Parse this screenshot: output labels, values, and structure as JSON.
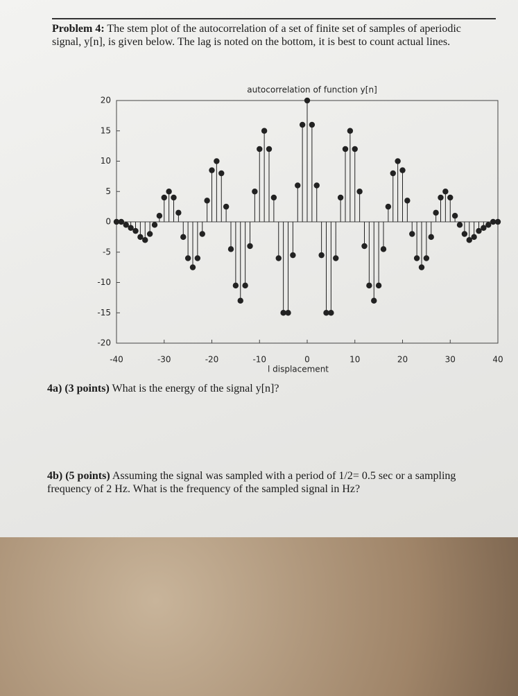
{
  "header": {
    "label": "Problem 4:",
    "text": "The stem plot of the autocorrelation of a set of finite set of samples of aperiodic signal, y[n], is given below.  The lag is noted on the bottom, it is best to count actual lines."
  },
  "chart_data": {
    "type": "stem",
    "title": "autocorrelation of function y[n]",
    "x_label": "l displacement",
    "color": "#222222",
    "x": [
      -40,
      -39,
      -38,
      -37,
      -36,
      -35,
      -34,
      -33,
      -32,
      -31,
      -30,
      -29,
      -28,
      -27,
      -26,
      -25,
      -24,
      -23,
      -22,
      -21,
      -20,
      -19,
      -18,
      -17,
      -16,
      -15,
      -14,
      -13,
      -12,
      -11,
      -10,
      -9,
      -8,
      -7,
      -6,
      -5,
      -4,
      -3,
      -2,
      -1,
      0,
      1,
      2,
      3,
      4,
      5,
      6,
      7,
      8,
      9,
      10,
      11,
      12,
      13,
      14,
      15,
      16,
      17,
      18,
      19,
      20,
      21,
      22,
      23,
      24,
      25,
      26,
      27,
      28,
      29,
      30,
      31,
      32,
      33,
      34,
      35,
      36,
      37,
      38,
      39,
      40
    ],
    "values": [
      0,
      0,
      -0.5,
      -1,
      -1.5,
      -2.5,
      -3,
      -2,
      -0.5,
      1,
      4,
      5,
      4,
      1.5,
      -2.5,
      -6,
      -7.5,
      -6,
      -2,
      3.5,
      8.5,
      10,
      8,
      2.5,
      -4.5,
      -10.5,
      -13,
      -10.5,
      -4,
      5,
      12,
      15,
      12,
      4,
      -6,
      -15,
      -15,
      -5.5,
      6,
      16,
      20,
      16,
      6,
      -5.5,
      -15,
      -15,
      -6,
      4,
      12,
      15,
      12,
      5,
      -4,
      -10.5,
      -13,
      -10.5,
      -4.5,
      2.5,
      8,
      10,
      8.5,
      3.5,
      -2,
      -6,
      -7.5,
      -6,
      -2.5,
      1.5,
      4,
      5,
      4,
      1,
      -0.5,
      -2,
      -3,
      -2.5,
      -1.5,
      -1,
      -0.5,
      0,
      0
    ],
    "xlim": [
      -40,
      40
    ],
    "xticks": [
      -40,
      -30,
      -20,
      -10,
      0,
      10,
      20,
      30,
      40
    ],
    "ylim": [
      -20,
      20
    ],
    "yticks": [
      -20,
      -15,
      -10,
      -5,
      0,
      5,
      10,
      15,
      20
    ]
  },
  "questions": [
    {
      "label": "4a) (3 points)",
      "text": "What is the energy of the signal y[n]?"
    },
    {
      "label": "4b) (5 points)",
      "text": "Assuming the signal was sampled with a period of 1/2= 0.5 sec or a sampling frequency of 2 Hz.  What is the frequency of the sampled signal in Hz?"
    }
  ]
}
